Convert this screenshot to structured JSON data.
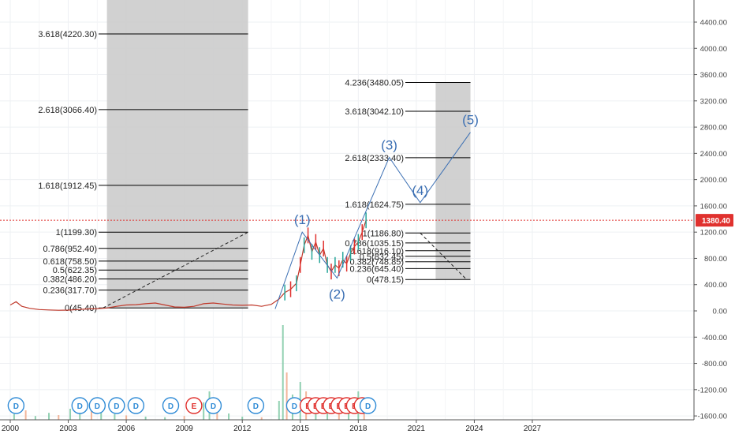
{
  "chart_data": {
    "type": "line",
    "title": "",
    "y_axis": {
      "min": -1600,
      "max": 4800,
      "tick_labels": [
        "4400.00",
        "4000.00",
        "3600.00",
        "3200.00",
        "2800.00",
        "2400.00",
        "2000.00",
        "1600.00",
        "1200.00",
        "800.00",
        "400.00",
        "0.00",
        "-400.00",
        "-800.00",
        "-1200.00",
        "-1600.00"
      ],
      "tick_values": [
        4400,
        4000,
        3600,
        3200,
        2800,
        2400,
        2000,
        1600,
        1200,
        800,
        400,
        0,
        -400,
        -800,
        -1200,
        -1600
      ],
      "side": "right"
    },
    "x_axis": {
      "tick_labels": [
        "2000",
        "2003",
        "2006",
        "2009",
        "2012",
        "2015",
        "2018",
        "2021",
        "2024",
        "2027"
      ],
      "tick_values": [
        2000,
        2003,
        2006,
        2009,
        2012,
        2015,
        2018,
        2021,
        2024,
        2027
      ]
    },
    "current_price": {
      "value": 1380.4,
      "label": "1380.40",
      "color": "#e0312e"
    },
    "fib_extension_left": {
      "x_range": [
        2005,
        2012.3
      ],
      "color": "#000000",
      "fill": "#cccccc",
      "levels": [
        {
          "label": "3.618(4220.30)",
          "value": 4220.3
        },
        {
          "label": "2.618(3066.40)",
          "value": 3066.4
        },
        {
          "label": "1.618(1912.45)",
          "value": 1912.45
        },
        {
          "label": "1(1199.30)",
          "value": 1199.3
        },
        {
          "label": "0.786(952.40)",
          "value": 952.4
        },
        {
          "label": "0.618(758.50)",
          "value": 758.5
        },
        {
          "label": "0.5(622.35)",
          "value": 622.35
        },
        {
          "label": "0.382(486.20)",
          "value": 486.2
        },
        {
          "label": "0.236(317.70)",
          "value": 317.7
        },
        {
          "label": "0(45.40)",
          "value": 45.4
        }
      ],
      "trend_from": {
        "x": 2004.8,
        "y": 45.4
      },
      "trend_to": {
        "x": 2012.3,
        "y": 1199.3
      }
    },
    "fib_extension_right": {
      "x_range": [
        2022.0,
        2023.8
      ],
      "color": "#000000",
      "fill": "#cccccc",
      "levels": [
        {
          "label": "4.236(3480.05)",
          "value": 3480.05
        },
        {
          "label": "3.618(3042.10)",
          "value": 3042.1
        },
        {
          "label": "2.618(2333.40)",
          "value": 2333.4
        },
        {
          "label": "1.618(1624.75)",
          "value": 1624.75
        },
        {
          "label": "1(1186.80)",
          "value": 1186.8
        },
        {
          "label": "0.786(1035.15)",
          "value": 1035.15
        },
        {
          "label": "0.618(916.10)",
          "value": 916.1
        },
        {
          "label": "0.5(832.45)",
          "value": 832.45
        },
        {
          "label": "0.382(748.85)",
          "value": 748.85
        },
        {
          "label": "0.236(645.40)",
          "value": 645.4
        },
        {
          "label": "0(478.15)",
          "value": 478.15
        }
      ],
      "trend_from": {
        "x": 2021.2,
        "y": 1186.8
      },
      "trend_to": {
        "x": 2023.6,
        "y": 478.15
      }
    },
    "elliott_waves": {
      "color": "#3b6fb3",
      "points": [
        {
          "x": 2013.7,
          "y": 30,
          "label": ""
        },
        {
          "x": 2015.1,
          "y": 1200,
          "label": "(1)"
        },
        {
          "x": 2016.9,
          "y": 500,
          "label": "(2)"
        },
        {
          "x": 2019.6,
          "y": 2340,
          "label": "(3)"
        },
        {
          "x": 2021.2,
          "y": 1650,
          "label": "(4)"
        },
        {
          "x": 2023.8,
          "y": 2720,
          "label": "(5)"
        }
      ]
    },
    "price_series": {
      "color": "#c0392b",
      "points": [
        {
          "x": 2000.0,
          "y": 90
        },
        {
          "x": 2000.3,
          "y": 140
        },
        {
          "x": 2000.6,
          "y": 70
        },
        {
          "x": 2001.0,
          "y": 40
        },
        {
          "x": 2001.5,
          "y": 20
        },
        {
          "x": 2002.0,
          "y": 15
        },
        {
          "x": 2002.5,
          "y": 10
        },
        {
          "x": 2003.0,
          "y": 12
        },
        {
          "x": 2003.5,
          "y": 20
        },
        {
          "x": 2004.0,
          "y": 30
        },
        {
          "x": 2004.5,
          "y": 35
        },
        {
          "x": 2005.0,
          "y": 45
        },
        {
          "x": 2005.5,
          "y": 70
        },
        {
          "x": 2006.0,
          "y": 90
        },
        {
          "x": 2006.5,
          "y": 95
        },
        {
          "x": 2007.0,
          "y": 110
        },
        {
          "x": 2007.5,
          "y": 120
        },
        {
          "x": 2008.0,
          "y": 90
        },
        {
          "x": 2008.5,
          "y": 60
        },
        {
          "x": 2009.0,
          "y": 55
        },
        {
          "x": 2009.5,
          "y": 70
        },
        {
          "x": 2010.0,
          "y": 110
        },
        {
          "x": 2010.5,
          "y": 120
        },
        {
          "x": 2011.0,
          "y": 105
        },
        {
          "x": 2011.5,
          "y": 90
        },
        {
          "x": 2012.0,
          "y": 85
        },
        {
          "x": 2012.5,
          "y": 90
        },
        {
          "x": 2013.0,
          "y": 70
        },
        {
          "x": 2013.5,
          "y": 100
        },
        {
          "x": 2013.9,
          "y": 180
        },
        {
          "x": 2014.2,
          "y": 280
        },
        {
          "x": 2014.5,
          "y": 330
        },
        {
          "x": 2014.8,
          "y": 420
        },
        {
          "x": 2015.0,
          "y": 700
        },
        {
          "x": 2015.2,
          "y": 1000
        },
        {
          "x": 2015.4,
          "y": 1150
        },
        {
          "x": 2015.6,
          "y": 900
        },
        {
          "x": 2015.8,
          "y": 1050
        },
        {
          "x": 2016.0,
          "y": 850
        },
        {
          "x": 2016.2,
          "y": 950
        },
        {
          "x": 2016.4,
          "y": 700
        },
        {
          "x": 2016.6,
          "y": 600
        },
        {
          "x": 2016.8,
          "y": 700
        },
        {
          "x": 2017.0,
          "y": 650
        },
        {
          "x": 2017.2,
          "y": 780
        },
        {
          "x": 2017.4,
          "y": 720
        },
        {
          "x": 2017.6,
          "y": 880
        },
        {
          "x": 2017.8,
          "y": 980
        },
        {
          "x": 2018.0,
          "y": 1050
        },
        {
          "x": 2018.2,
          "y": 1200
        },
        {
          "x": 2018.4,
          "y": 1380
        }
      ]
    },
    "volume_series": {
      "color": "#7fc9a4",
      "note_color_alt": "#f0a98a",
      "points": [
        {
          "x": 2000.2,
          "y": 0.18
        },
        {
          "x": 2000.8,
          "y": 0.3
        },
        {
          "x": 2001.3,
          "y": 0.12
        },
        {
          "x": 2002.0,
          "y": 0.22
        },
        {
          "x": 2002.5,
          "y": 0.15
        },
        {
          "x": 2003.1,
          "y": 0.35
        },
        {
          "x": 2003.6,
          "y": 0.25
        },
        {
          "x": 2004.2,
          "y": 0.4
        },
        {
          "x": 2004.7,
          "y": 0.22
        },
        {
          "x": 2005.4,
          "y": 0.18
        },
        {
          "x": 2006.0,
          "y": 0.14
        },
        {
          "x": 2007.0,
          "y": 0.1
        },
        {
          "x": 2008.0,
          "y": 0.08
        },
        {
          "x": 2009.0,
          "y": 0.12
        },
        {
          "x": 2010.0,
          "y": 0.55
        },
        {
          "x": 2010.3,
          "y": 0.9
        },
        {
          "x": 2010.7,
          "y": 0.3
        },
        {
          "x": 2011.3,
          "y": 0.2
        },
        {
          "x": 2012.0,
          "y": 0.1
        },
        {
          "x": 2013.0,
          "y": 0.08
        },
        {
          "x": 2013.9,
          "y": 0.6
        },
        {
          "x": 2014.1,
          "y": 3.0
        },
        {
          "x": 2014.3,
          "y": 1.5
        },
        {
          "x": 2014.6,
          "y": 0.8
        },
        {
          "x": 2015.0,
          "y": 1.2
        },
        {
          "x": 2015.3,
          "y": 0.9
        },
        {
          "x": 2015.8,
          "y": 0.7
        },
        {
          "x": 2016.4,
          "y": 0.6
        },
        {
          "x": 2017.0,
          "y": 0.5
        },
        {
          "x": 2017.5,
          "y": 0.7
        },
        {
          "x": 2018.0,
          "y": 0.9
        },
        {
          "x": 2018.3,
          "y": 0.6
        }
      ]
    },
    "events": [
      {
        "x": 2000.3,
        "type": "D"
      },
      {
        "x": 2003.6,
        "type": "D"
      },
      {
        "x": 2004.5,
        "type": "D"
      },
      {
        "x": 2005.5,
        "type": "D"
      },
      {
        "x": 2006.5,
        "type": "D"
      },
      {
        "x": 2008.3,
        "type": "D"
      },
      {
        "x": 2009.5,
        "type": "E"
      },
      {
        "x": 2010.5,
        "type": "D"
      },
      {
        "x": 2012.7,
        "type": "D"
      },
      {
        "x": 2014.7,
        "type": "D"
      },
      {
        "x": 2015.4,
        "type": "E"
      },
      {
        "x": 2015.8,
        "type": "E"
      },
      {
        "x": 2016.2,
        "type": "E"
      },
      {
        "x": 2016.6,
        "type": "E"
      },
      {
        "x": 2017.0,
        "type": "E"
      },
      {
        "x": 2017.4,
        "type": "E"
      },
      {
        "x": 2017.8,
        "type": "E"
      },
      {
        "x": 2018.2,
        "type": "E"
      },
      {
        "x": 2018.5,
        "type": "D"
      }
    ],
    "grid": true,
    "colors": {
      "event_d": "#2f8bd6",
      "event_e": "#e0312e"
    }
  }
}
